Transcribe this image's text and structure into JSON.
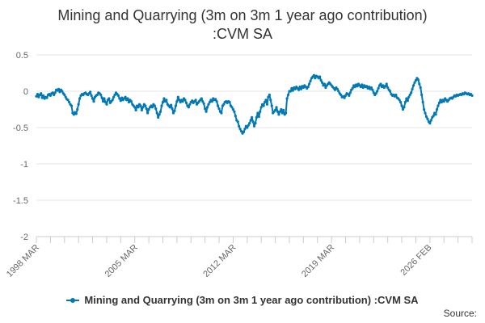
{
  "chart_data": {
    "type": "line",
    "title_line1": "Mining and Quarrying (3m on 3m 1 year ago contribution)",
    "title_line2": ":CVM SA",
    "ylim": [
      -2,
      0.5
    ],
    "yticks": [
      0.5,
      0,
      -0.5,
      -1,
      -1.5,
      -2
    ],
    "ytick_labels": [
      "0.5",
      "0",
      "-0.5",
      "-1",
      "-1.5",
      "-2"
    ],
    "x_start": "1998 MAR",
    "x_end": "2026 FEB",
    "xtick_labels": [
      "1998 MAR",
      "2005 MAR",
      "2012 MAR",
      "2019 MAR",
      "2026 FEB"
    ],
    "xtick_positions": [
      0,
      84,
      168,
      252,
      335
    ],
    "grid": true,
    "legend_position": "bottom",
    "series": [
      {
        "name": "Mining and Quarrying (3m on 3m 1 year ago contribution) :CVM SA",
        "color": "#0079b5",
        "values": [
          -0.07,
          -0.04,
          -0.08,
          -0.05,
          -0.03,
          -0.09,
          -0.06,
          -0.1,
          -0.08,
          -0.09,
          -0.05,
          -0.04,
          -0.06,
          -0.03,
          -0.02,
          -0.05,
          -0.02,
          0.02,
          0.01,
          0.03,
          -0.01,
          0.02,
          0.0,
          -0.03,
          -0.05,
          -0.08,
          -0.11,
          -0.12,
          -0.15,
          -0.18,
          -0.2,
          -0.3,
          -0.32,
          -0.29,
          -0.31,
          -0.25,
          -0.18,
          -0.1,
          -0.06,
          -0.04,
          -0.05,
          -0.03,
          -0.02,
          -0.04,
          -0.05,
          -0.03,
          -0.01,
          -0.06,
          -0.1,
          -0.14,
          -0.08,
          -0.06,
          -0.05,
          -0.02,
          -0.03,
          -0.05,
          -0.09,
          -0.14,
          -0.1,
          -0.15,
          -0.18,
          -0.12,
          -0.1,
          -0.16,
          -0.14,
          -0.12,
          -0.08,
          -0.05,
          -0.02,
          -0.04,
          -0.06,
          -0.1,
          -0.13,
          -0.09,
          -0.12,
          -0.1,
          -0.08,
          -0.12,
          -0.1,
          -0.15,
          -0.12,
          -0.14,
          -0.18,
          -0.2,
          -0.22,
          -0.26,
          -0.2,
          -0.22,
          -0.18,
          -0.2,
          -0.26,
          -0.22,
          -0.18,
          -0.2,
          -0.24,
          -0.3,
          -0.25,
          -0.22,
          -0.2,
          -0.22,
          -0.18,
          -0.2,
          -0.24,
          -0.3,
          -0.36,
          -0.32,
          -0.28,
          -0.2,
          -0.15,
          -0.1,
          -0.14,
          -0.12,
          -0.18,
          -0.2,
          -0.22,
          -0.19,
          -0.24,
          -0.3,
          -0.27,
          -0.2,
          -0.14,
          -0.08,
          -0.12,
          -0.15,
          -0.12,
          -0.14,
          -0.1,
          -0.12,
          -0.16,
          -0.2,
          -0.22,
          -0.18,
          -0.15,
          -0.13,
          -0.16,
          -0.14,
          -0.12,
          -0.18,
          -0.16,
          -0.14,
          -0.12,
          -0.1,
          -0.14,
          -0.17,
          -0.24,
          -0.28,
          -0.22,
          -0.18,
          -0.15,
          -0.12,
          -0.14,
          -0.1,
          -0.12,
          -0.11,
          -0.14,
          -0.2,
          -0.24,
          -0.28,
          -0.3,
          -0.2,
          -0.18,
          -0.15,
          -0.14,
          -0.16,
          -0.14,
          -0.15,
          -0.2,
          -0.22,
          -0.25,
          -0.28,
          -0.34,
          -0.4,
          -0.42,
          -0.48,
          -0.52,
          -0.55,
          -0.58,
          -0.56,
          -0.52,
          -0.48,
          -0.5,
          -0.47,
          -0.44,
          -0.4,
          -0.36,
          -0.42,
          -0.48,
          -0.44,
          -0.36,
          -0.3,
          -0.35,
          -0.28,
          -0.22,
          -0.18,
          -0.2,
          -0.15,
          -0.12,
          -0.18,
          -0.08,
          -0.05,
          -0.12,
          -0.2,
          -0.3,
          -0.28,
          -0.26,
          -0.22,
          -0.28,
          -0.32,
          -0.28,
          -0.25,
          -0.3,
          -0.26,
          -0.32,
          -0.3,
          -0.1,
          -0.05,
          0.0,
          0.0,
          0.04,
          0.01,
          0.05,
          0.03,
          0.06,
          0.04,
          0.02,
          0.06,
          0.03,
          0.07,
          0.05,
          0.08,
          0.06,
          0.04,
          0.06,
          0.1,
          0.14,
          0.18,
          0.2,
          0.22,
          0.18,
          0.21,
          0.2,
          0.18,
          0.2,
          0.15,
          0.12,
          0.08,
          0.1,
          0.05,
          0.08,
          0.1,
          0.12,
          0.1,
          0.08,
          0.06,
          0.04,
          0.02,
          0.05,
          0.03,
          0.0,
          -0.03,
          -0.05,
          -0.08,
          -0.07,
          -0.09,
          -0.06,
          -0.03,
          -0.04,
          -0.06,
          -0.02,
          0.02,
          0.04,
          0.08,
          0.06,
          0.09,
          0.07,
          0.1,
          0.08,
          0.06,
          0.09,
          0.05,
          0.08,
          0.06,
          0.07,
          0.04,
          0.06,
          0.03,
          0.05,
          0.02,
          -0.02,
          -0.05,
          -0.03,
          0.0,
          0.04,
          0.08,
          0.1,
          0.06,
          0.08,
          0.05,
          0.07,
          0.1,
          0.05,
          0.02,
          0.0,
          -0.04,
          -0.06,
          -0.05,
          -0.07,
          -0.05,
          -0.09,
          -0.1,
          -0.12,
          -0.15,
          -0.2,
          -0.25,
          -0.22,
          -0.15,
          -0.1,
          -0.13,
          -0.08,
          -0.05,
          -0.02,
          0.03,
          0.08,
          0.12,
          0.15,
          0.18,
          0.16,
          0.1,
          0.05,
          -0.05,
          -0.15,
          -0.25,
          -0.3,
          -0.35,
          -0.38,
          -0.42,
          -0.44,
          -0.4,
          -0.36,
          -0.34,
          -0.3,
          -0.32,
          -0.25,
          -0.2,
          -0.16,
          -0.12,
          -0.15,
          -0.12,
          -0.14,
          -0.1,
          -0.12,
          -0.14,
          -0.12,
          -0.1,
          -0.09,
          -0.1,
          -0.08,
          -0.06,
          -0.07,
          -0.05,
          -0.06,
          -0.05,
          -0.04,
          -0.05,
          -0.03,
          -0.04,
          -0.02,
          -0.03,
          -0.04,
          -0.03,
          -0.05,
          -0.04,
          -0.06
        ]
      }
    ]
  },
  "legend": {
    "label": "Mining and Quarrying (3m on 3m 1 year ago contribution) :CVM SA"
  },
  "footer": {
    "source_label": "Source:"
  }
}
